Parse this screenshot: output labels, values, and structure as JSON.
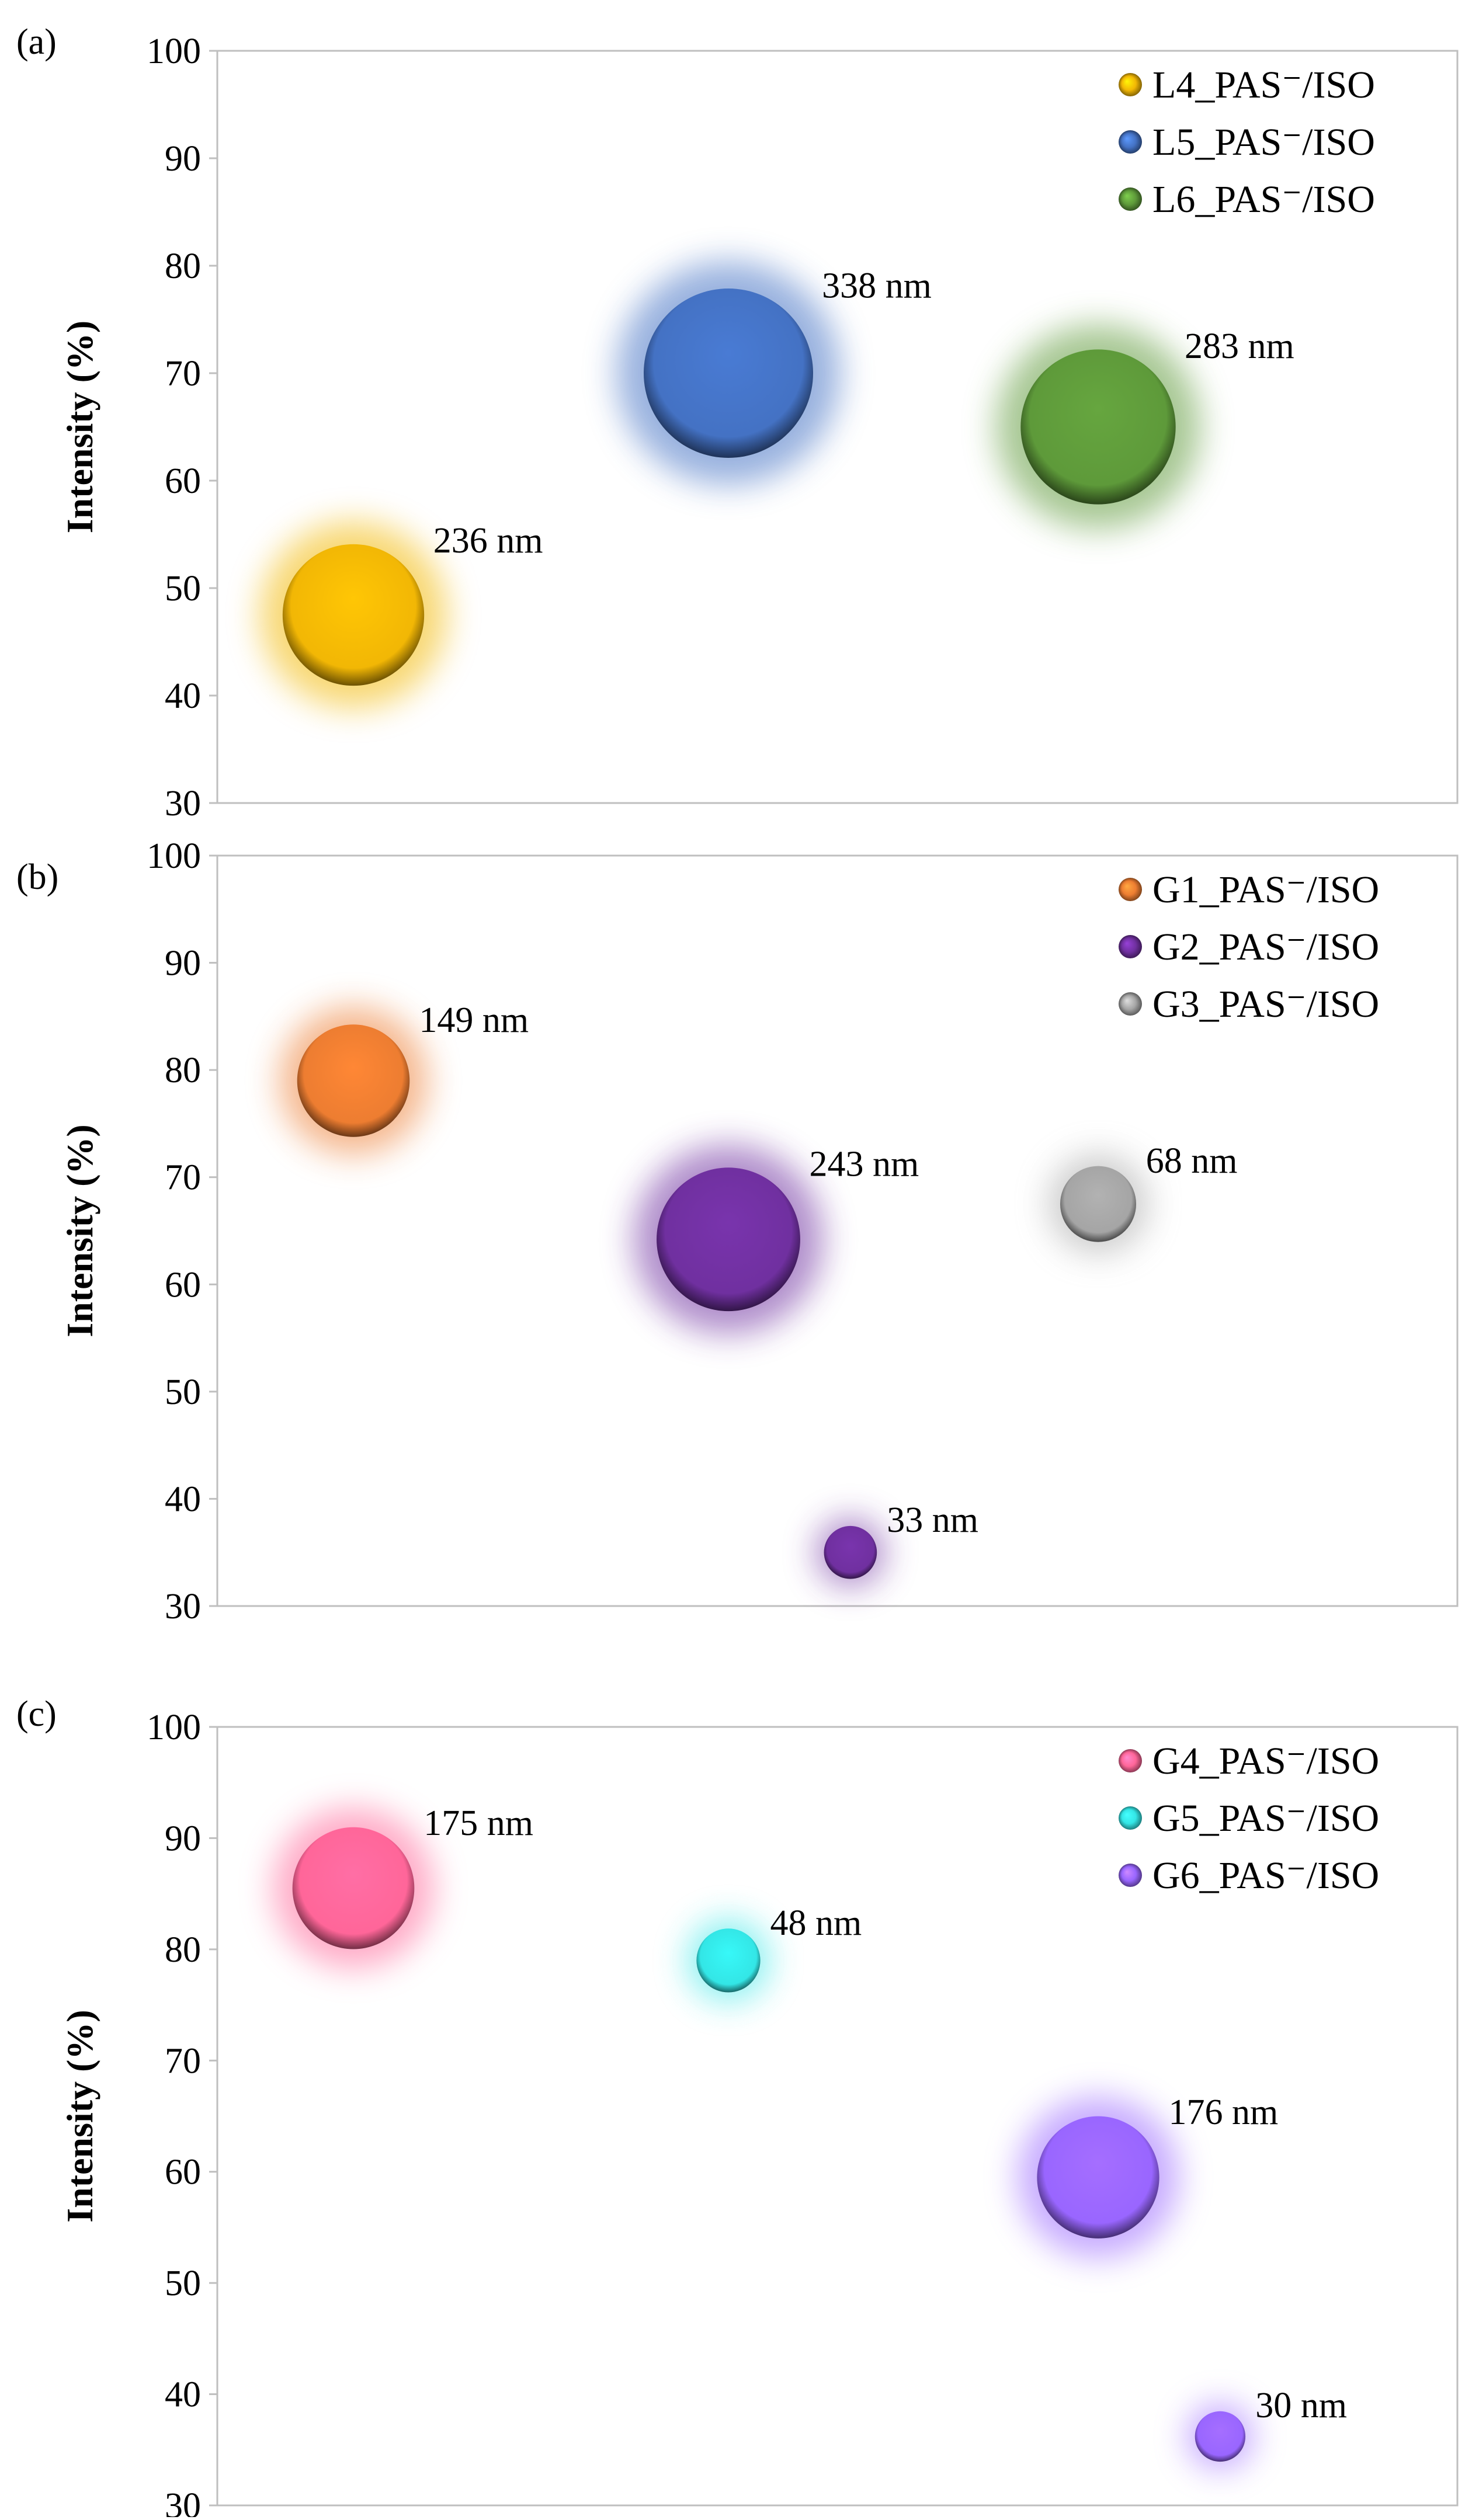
{
  "chart_data": [
    {
      "panel": "(a)",
      "type": "scatter",
      "ylabel": "Intensity (%)",
      "ylim": [
        30,
        100
      ],
      "yticks": [
        30,
        40,
        50,
        60,
        70,
        80,
        90,
        100
      ],
      "x_positions": [
        1,
        2,
        3
      ],
      "grid": false,
      "legend": "top-right",
      "series": [
        {
          "name": "L4_PAS⁻/ISO",
          "color": "#F2B705",
          "points": [
            {
              "x": 1,
              "y": 47.5,
              "size_nm": 236,
              "label": "236 nm"
            }
          ]
        },
        {
          "name": "L5_PAS⁻/ISO",
          "color": "#4472C4",
          "points": [
            {
              "x": 2,
              "y": 70,
              "size_nm": 338,
              "label": "338 nm"
            }
          ]
        },
        {
          "name": "L6_PAS⁻/ISO",
          "color": "#5E9A3A",
          "points": [
            {
              "x": 3,
              "y": 65,
              "size_nm": 283,
              "label": "283 nm"
            }
          ]
        }
      ]
    },
    {
      "panel": "(b)",
      "type": "scatter",
      "ylabel": "Intensity (%)",
      "ylim": [
        30,
        100
      ],
      "yticks": [
        30,
        40,
        50,
        60,
        70,
        80,
        90,
        100
      ],
      "x_positions": [
        1,
        2,
        3
      ],
      "grid": false,
      "legend": "top-right",
      "series": [
        {
          "name": "G1_PAS⁻/ISO",
          "color": "#ED7D31",
          "points": [
            {
              "x": 1,
              "y": 79,
              "size_nm": 149,
              "label": "149 nm"
            }
          ]
        },
        {
          "name": "G2_PAS⁻/ISO",
          "color": "#7030A0",
          "points": [
            {
              "x": 2,
              "y": 64.2,
              "size_nm": 243,
              "label": "243 nm"
            },
            {
              "x": 2.33,
              "y": 35,
              "size_nm": 33,
              "label": "33 nm"
            }
          ]
        },
        {
          "name": "G3_PAS⁻/ISO",
          "color": "#A5A5A5",
          "points": [
            {
              "x": 3,
              "y": 67.5,
              "size_nm": 68,
              "label": "68 nm"
            }
          ]
        }
      ]
    },
    {
      "panel": "(c)",
      "type": "scatter",
      "ylabel": "Intensity (%)",
      "ylim": [
        30,
        100
      ],
      "yticks": [
        30,
        40,
        50,
        60,
        70,
        80,
        90,
        100
      ],
      "x_positions": [
        1,
        2,
        3
      ],
      "grid": false,
      "legend": "top-right",
      "series": [
        {
          "name": "G4_PAS⁻/ISO",
          "color": "#FF6699",
          "points": [
            {
              "x": 1,
              "y": 85.5,
              "size_nm": 175,
              "label": "175 nm"
            }
          ]
        },
        {
          "name": "G5_PAS⁻/ISO",
          "color": "#33E6E6",
          "points": [
            {
              "x": 2,
              "y": 79,
              "size_nm": 48,
              "label": "48 nm"
            }
          ]
        },
        {
          "name": "G6_PAS⁻/ISO",
          "color": "#9966FF",
          "points": [
            {
              "x": 3,
              "y": 59.5,
              "size_nm": 176,
              "label": "176 nm"
            },
            {
              "x": 3.33,
              "y": 36.2,
              "size_nm": 30,
              "label": "30 nm"
            }
          ]
        }
      ]
    }
  ]
}
